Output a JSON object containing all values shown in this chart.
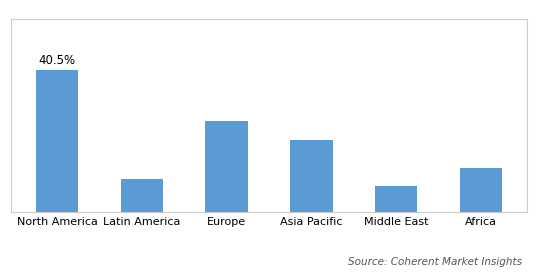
{
  "categories": [
    "North America",
    "Latin America",
    "Europe",
    "Asia Pacific",
    "Middle East",
    "Africa"
  ],
  "values": [
    40.5,
    9.5,
    26.0,
    20.5,
    7.5,
    12.5
  ],
  "bar_color": "#5B9BD5",
  "label_text": "40.5%",
  "label_bar_index": 0,
  "source_text": "Source: Coherent Market Insights",
  "background_color": "#ffffff",
  "ylim": [
    0,
    55
  ],
  "bar_width": 0.5,
  "label_fontsize": 8.5,
  "tick_fontsize": 8.0,
  "source_fontsize": 7.5,
  "border_color": "#cccccc",
  "has_border": true
}
